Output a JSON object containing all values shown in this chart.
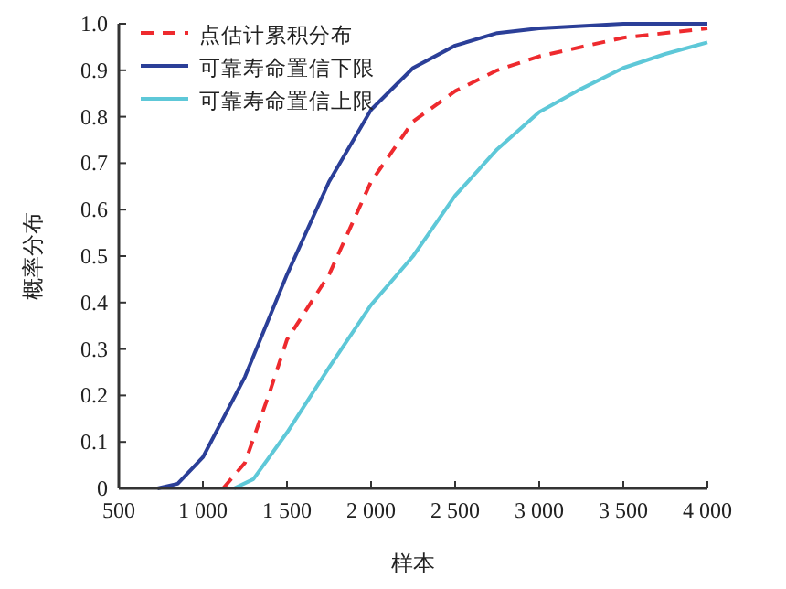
{
  "chart_data": {
    "type": "line",
    "xlabel": "样本",
    "ylabel": "概率分布",
    "xlim": [
      500,
      4000
    ],
    "ylim": [
      0,
      1.0
    ],
    "xticks": [
      500,
      {
        "value": 1000,
        "label": "1 000"
      },
      {
        "value": 1500,
        "label": "1 500"
      },
      {
        "value": 2000,
        "label": "2 000"
      },
      {
        "value": 2500,
        "label": "2 500"
      },
      {
        "value": 3000,
        "label": "3 000"
      },
      {
        "value": 3500,
        "label": "3 500"
      },
      {
        "value": 4000,
        "label": "4 000"
      }
    ],
    "yticks": [
      0,
      0.1,
      0.2,
      0.3,
      0.4,
      0.5,
      0.6,
      0.7,
      0.8,
      0.9,
      {
        "value": 1.0,
        "label": "1.0"
      }
    ],
    "legend": "top left",
    "grid": false,
    "series": [
      {
        "name": "点估计累积分布",
        "color": "#ee2a2e",
        "line_style": "dashed",
        "x": [
          1120,
          1250,
          1400,
          1500,
          1750,
          2000,
          2250,
          2500,
          2750,
          3000,
          3500,
          4000
        ],
        "values": [
          0,
          0.055,
          0.21,
          0.32,
          0.46,
          0.66,
          0.79,
          0.855,
          0.9,
          0.93,
          0.97,
          0.99
        ]
      },
      {
        "name": "可靠寿命置信下限",
        "color": "#2b3f98",
        "line_style": "solid",
        "x": [
          730,
          850,
          1000,
          1250,
          1500,
          1750,
          2000,
          2250,
          2500,
          2750,
          3000,
          3500,
          4000
        ],
        "values": [
          0,
          0.01,
          0.067,
          0.24,
          0.46,
          0.66,
          0.815,
          0.905,
          0.953,
          0.98,
          0.99,
          1.0,
          1.0
        ]
      },
      {
        "name": "可靠寿命置信上限",
        "color": "#5ec8d8",
        "line_style": "solid",
        "x": [
          1185,
          1300,
          1500,
          1750,
          2000,
          2250,
          2500,
          2750,
          3000,
          3250,
          3500,
          3750,
          4000
        ],
        "values": [
          0,
          0.02,
          0.12,
          0.26,
          0.395,
          0.5,
          0.63,
          0.73,
          0.81,
          0.86,
          0.905,
          0.935,
          0.96
        ]
      }
    ]
  }
}
